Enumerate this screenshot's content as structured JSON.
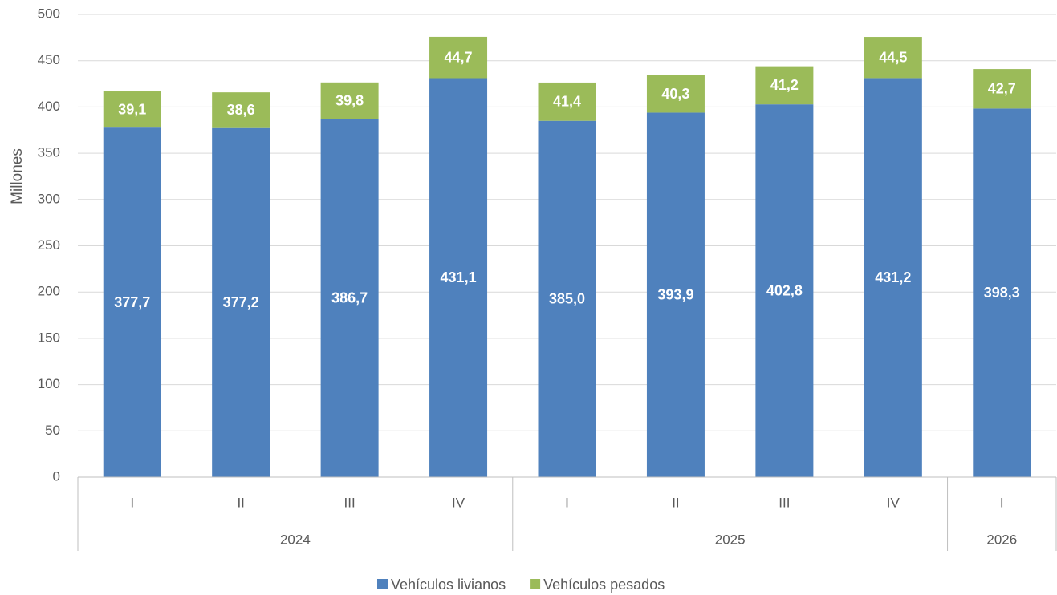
{
  "chart_data": {
    "type": "stacked_bar",
    "y_label": "Millones",
    "categories": [
      "I",
      "II",
      "III",
      "IV",
      "I",
      "II",
      "III",
      "IV",
      "I"
    ],
    "groups": [
      {
        "label": "2024",
        "span": 4
      },
      {
        "label": "2025",
        "span": 4
      },
      {
        "label": "2026",
        "span": 1
      }
    ],
    "series": [
      {
        "name": "Vehículos livianos",
        "color": "#4f81bd",
        "values": [
          377.7,
          377.2,
          386.7,
          431.1,
          385.0,
          393.9,
          402.8,
          431.2,
          398.3
        ],
        "value_labels": [
          "377,7",
          "377,2",
          "386,7",
          "431,1",
          "385,0",
          "393,9",
          "402,8",
          "431,2",
          "398,3"
        ]
      },
      {
        "name": "Vehículos pesados",
        "color": "#9bbb59",
        "values": [
          39.1,
          38.6,
          39.8,
          44.7,
          41.4,
          40.3,
          41.2,
          44.5,
          42.7
        ],
        "value_labels": [
          "39,1",
          "38,6",
          "39,8",
          "44,7",
          "41,4",
          "40,3",
          "41,2",
          "44,5",
          "42,7"
        ]
      }
    ],
    "ylim": [
      0,
      500
    ],
    "yticks": [
      0,
      50,
      100,
      150,
      200,
      250,
      300,
      350,
      400,
      450,
      500
    ],
    "grid": true,
    "legend": "bottom"
  }
}
